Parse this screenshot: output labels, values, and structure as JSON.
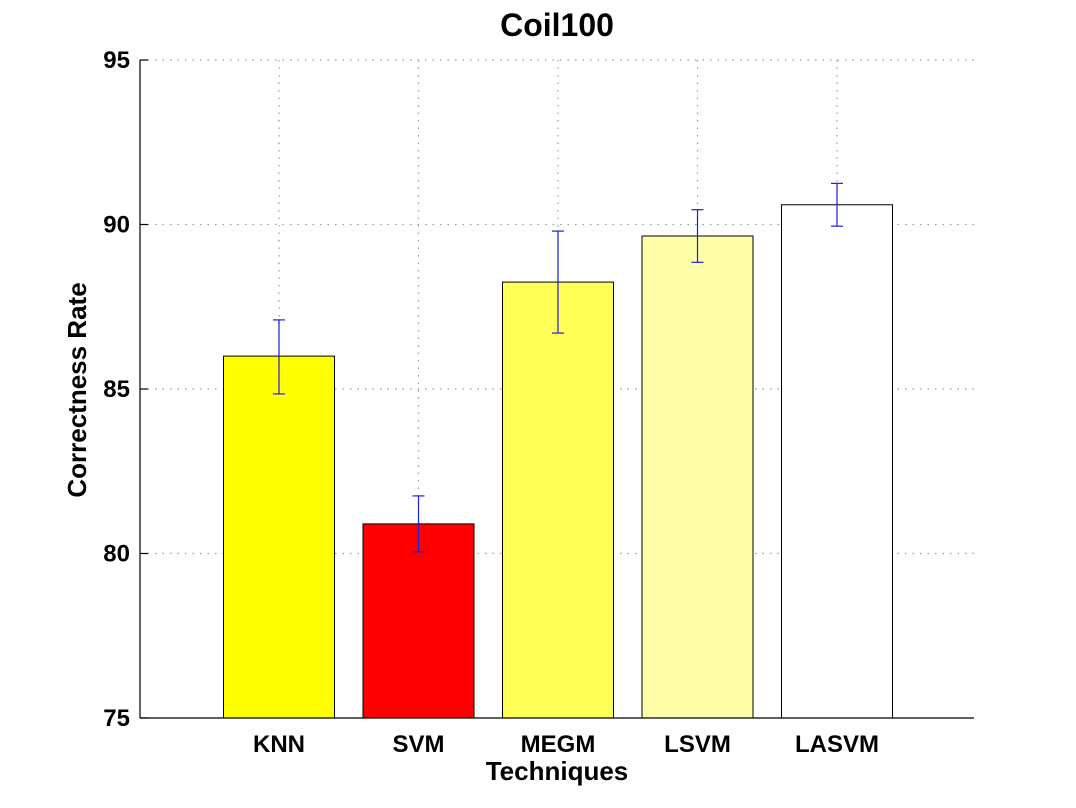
{
  "chart_data": {
    "type": "bar",
    "title": "Coil100",
    "xlabel": "Techniques",
    "ylabel": "Correctness Rate",
    "categories": [
      "KNN",
      "SVM",
      "MEGM",
      "LSVM",
      "LASVM"
    ],
    "values": [
      86.0,
      80.9,
      88.25,
      89.65,
      90.6
    ],
    "error_low": [
      84.85,
      80.05,
      86.7,
      88.85,
      89.95
    ],
    "error_high": [
      87.1,
      81.75,
      89.8,
      90.45,
      91.25
    ],
    "bar_colors": [
      "#ffff00",
      "#ff0000",
      "#ffff55",
      "#ffffaa",
      "#ffffff"
    ],
    "error_color": "#1f1fd6",
    "ylim": [
      75,
      95
    ],
    "yticks": [
      75,
      80,
      85,
      90,
      95
    ],
    "grid": true
  }
}
